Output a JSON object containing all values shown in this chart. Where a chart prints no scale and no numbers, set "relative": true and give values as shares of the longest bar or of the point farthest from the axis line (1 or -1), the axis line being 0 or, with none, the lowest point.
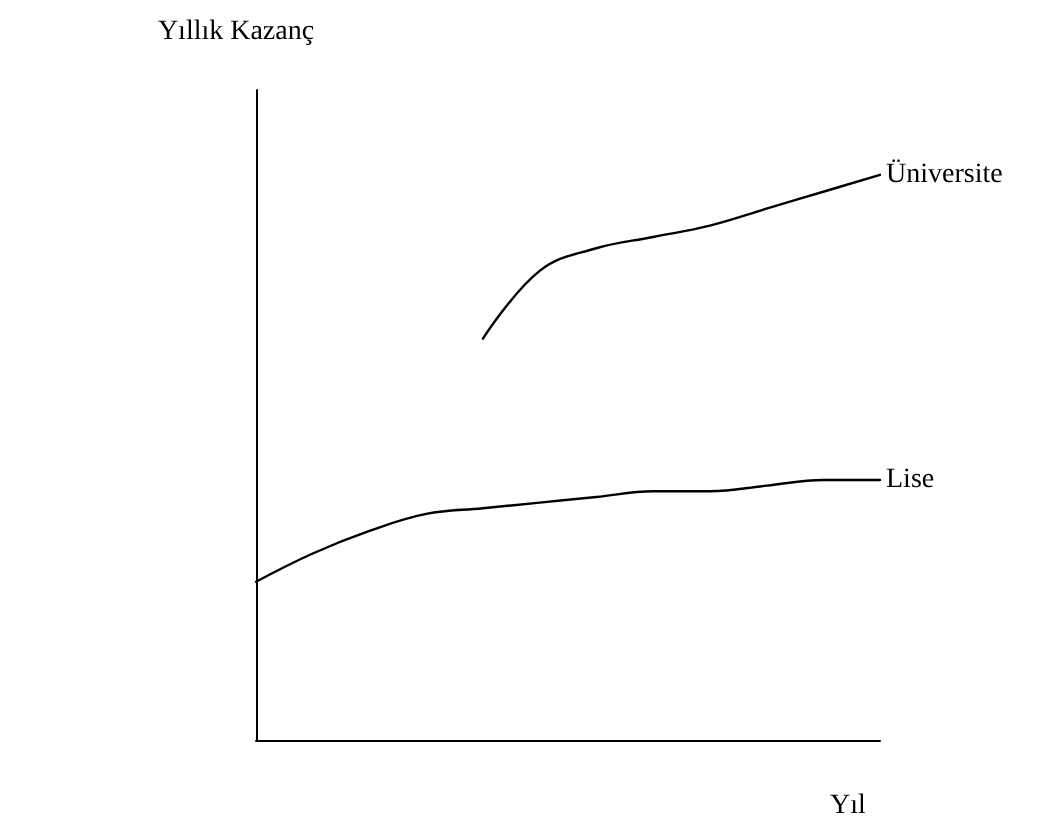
{
  "chart_data": {
    "type": "line",
    "relative": true,
    "xlabel": "Yıl",
    "ylabel": "Yıllık Kazanç",
    "marker": "none",
    "categories": [
      null,
      null,
      null,
      null,
      null,
      null,
      null,
      null,
      null,
      null,
      null,
      null
    ],
    "series": [
      {
        "name": "Üniversite",
        "color": "#000000",
        "values": [
          null,
          null,
          null,
          null,
          0.71,
          0.83,
          0.87,
          0.89,
          0.91,
          0.94,
          0.97,
          1
        ]
      },
      {
        "name": "Lise",
        "color": "#000000",
        "values": [
          0.28,
          0.33,
          0.37,
          0.4,
          0.41,
          0.42,
          0.43,
          0.44,
          0.44,
          0.45,
          0.46,
          0.46
        ]
      }
    ]
  }
}
